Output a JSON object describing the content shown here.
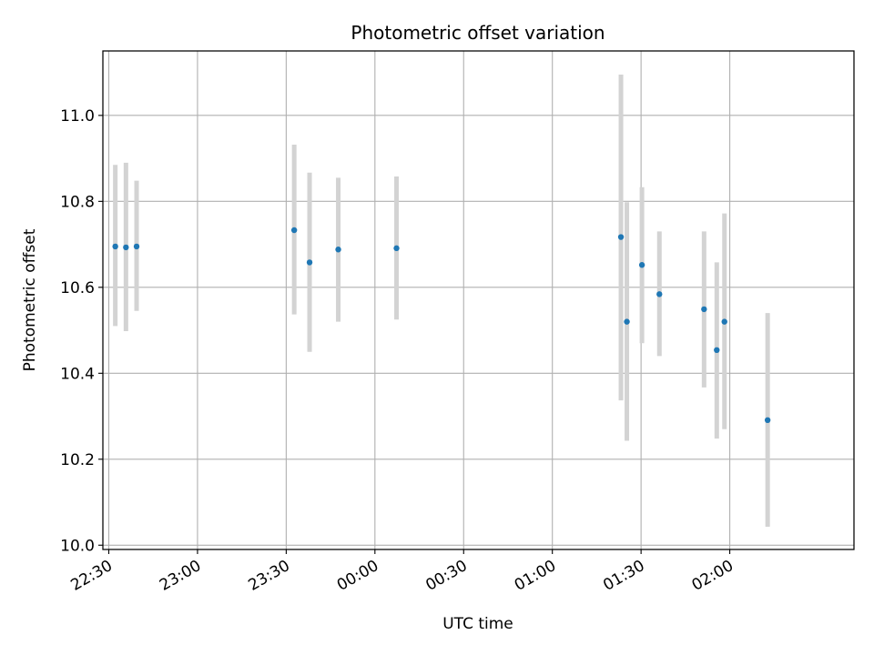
{
  "chart_data": {
    "type": "scatter",
    "title": "Photometric offset variation",
    "xlabel": "UTC time",
    "ylabel": "Photometric offset",
    "grid": true,
    "xlim": [
      "2000-01-01T22:28:00",
      "2000-01-02T02:42:00"
    ],
    "ylim": [
      9.99,
      11.15
    ],
    "x_ticks": [
      {
        "t": "2000-01-01T22:30:00",
        "label": "22:30"
      },
      {
        "t": "2000-01-01T23:00:00",
        "label": "23:00"
      },
      {
        "t": "2000-01-01T23:30:00",
        "label": "23:30"
      },
      {
        "t": "2000-01-02T00:00:00",
        "label": "00:00"
      },
      {
        "t": "2000-01-02T00:30:00",
        "label": "00:30"
      },
      {
        "t": "2000-01-02T01:00:00",
        "label": "01:00"
      },
      {
        "t": "2000-01-02T01:30:00",
        "label": "01:30"
      },
      {
        "t": "2000-01-02T02:00:00",
        "label": "02:00"
      }
    ],
    "y_ticks": [
      {
        "v": 10.0,
        "label": "10.0"
      },
      {
        "v": 10.2,
        "label": "10.2"
      },
      {
        "v": 10.4,
        "label": "10.4"
      },
      {
        "v": 10.6,
        "label": "10.6"
      },
      {
        "v": 10.8,
        "label": "10.8"
      },
      {
        "v": 11.0,
        "label": "11.0"
      }
    ],
    "point_color": "#1f77b4",
    "errorbar_color": "#d3d3d3",
    "points": [
      {
        "t": "2000-01-01T22:32:12",
        "y": 10.695,
        "lo": 10.51,
        "hi": 10.885
      },
      {
        "t": "2000-01-01T22:35:48",
        "y": 10.693,
        "lo": 10.498,
        "hi": 10.89
      },
      {
        "t": "2000-01-01T22:39:24",
        "y": 10.695,
        "lo": 10.545,
        "hi": 10.848
      },
      {
        "t": "2000-01-01T23:32:42",
        "y": 10.733,
        "lo": 10.537,
        "hi": 10.932
      },
      {
        "t": "2000-01-01T23:37:54",
        "y": 10.658,
        "lo": 10.45,
        "hi": 10.867
      },
      {
        "t": "2000-01-01T23:47:36",
        "y": 10.688,
        "lo": 10.52,
        "hi": 10.855
      },
      {
        "t": "2000-01-02T00:07:18",
        "y": 10.691,
        "lo": 10.525,
        "hi": 10.858
      },
      {
        "t": "2000-01-02T01:23:12",
        "y": 10.717,
        "lo": 10.337,
        "hi": 11.095
      },
      {
        "t": "2000-01-02T01:25:12",
        "y": 10.52,
        "lo": 10.243,
        "hi": 10.798
      },
      {
        "t": "2000-01-02T01:30:18",
        "y": 10.652,
        "lo": 10.47,
        "hi": 10.833
      },
      {
        "t": "2000-01-02T01:36:12",
        "y": 10.584,
        "lo": 10.44,
        "hi": 10.73
      },
      {
        "t": "2000-01-02T01:51:18",
        "y": 10.549,
        "lo": 10.367,
        "hi": 10.73
      },
      {
        "t": "2000-01-02T01:55:36",
        "y": 10.454,
        "lo": 10.248,
        "hi": 10.658
      },
      {
        "t": "2000-01-02T01:58:12",
        "y": 10.52,
        "lo": 10.27,
        "hi": 10.772
      },
      {
        "t": "2000-01-02T02:12:48",
        "y": 10.291,
        "lo": 10.043,
        "hi": 10.54
      }
    ]
  }
}
